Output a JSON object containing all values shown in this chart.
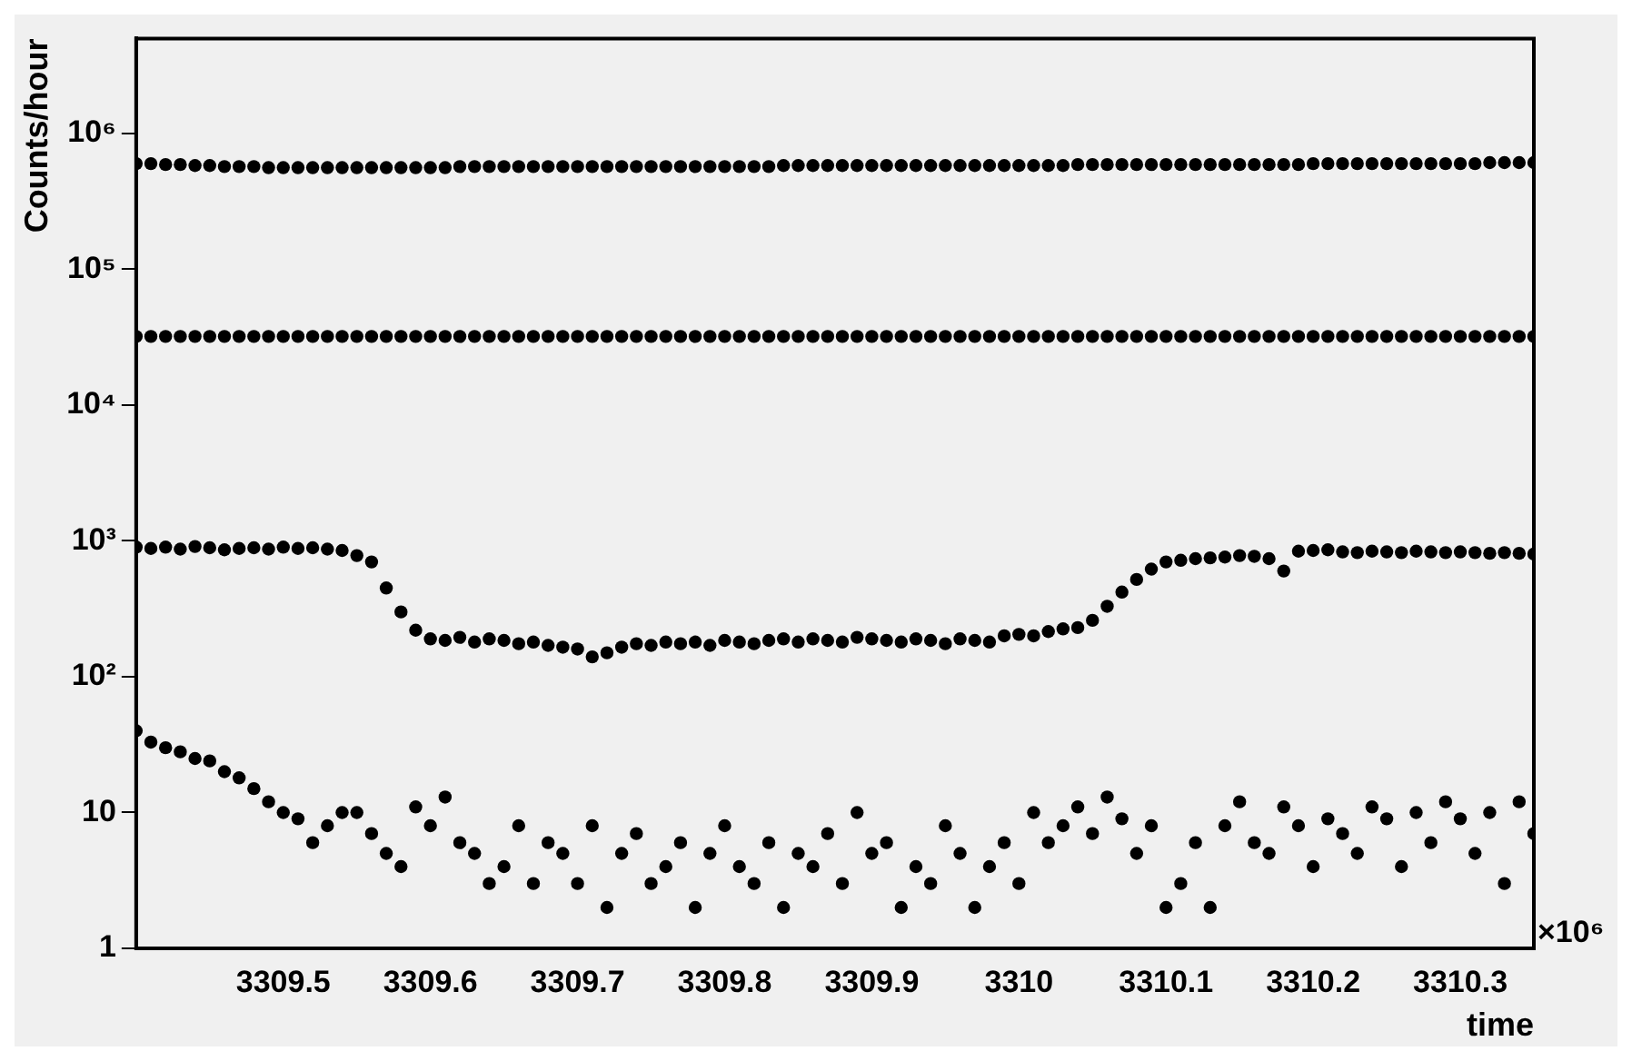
{
  "chart_data": {
    "type": "scatter",
    "xlabel": "time",
    "ylabel": "Counts/hour",
    "marker": "circle",
    "log": "y",
    "grid": false,
    "legend": false,
    "annotations": [
      "×10⁶"
    ],
    "xlim": [
      3309.4,
      3310.35
    ],
    "xticks": [
      3309.5,
      3309.6,
      3309.7,
      3309.8,
      3309.9,
      3310,
      3310.1,
      3310.2,
      3310.3
    ],
    "ylim": [
      1,
      5000000
    ],
    "yticks": [
      1,
      10,
      {
        "value": 100,
        "label": "10²"
      },
      {
        "value": 1000,
        "label": "10³"
      },
      {
        "value": 10000,
        "label": "10⁴"
      },
      {
        "value": 100000,
        "label": "10⁵"
      },
      {
        "value": 1000000,
        "label": "10⁶"
      }
    ],
    "x": [
      3309.4,
      3309.41,
      3309.42,
      3309.43,
      3309.44,
      3309.45,
      3309.46,
      3309.47,
      3309.48,
      3309.49,
      3309.5,
      3309.51,
      3309.52,
      3309.53,
      3309.54,
      3309.55,
      3309.56,
      3309.57,
      3309.58,
      3309.59,
      3309.6,
      3309.61,
      3309.62,
      3309.63,
      3309.64,
      3309.65,
      3309.66,
      3309.67,
      3309.68,
      3309.69,
      3309.7,
      3309.71,
      3309.72,
      3309.73,
      3309.74,
      3309.75,
      3309.76,
      3309.77,
      3309.78,
      3309.79,
      3309.8,
      3309.81,
      3309.82,
      3309.83,
      3309.84,
      3309.85,
      3309.86,
      3309.87,
      3309.88,
      3309.89,
      3309.9,
      3309.91,
      3309.92,
      3309.93,
      3309.94,
      3309.95,
      3309.96,
      3309.97,
      3309.98,
      3309.99,
      3310.0,
      3310.01,
      3310.02,
      3310.03,
      3310.04,
      3310.05,
      3310.06,
      3310.07,
      3310.08,
      3310.09,
      3310.1,
      3310.11,
      3310.12,
      3310.13,
      3310.14,
      3310.15,
      3310.16,
      3310.17,
      3310.18,
      3310.19,
      3310.2,
      3310.21,
      3310.22,
      3310.23,
      3310.24,
      3310.25,
      3310.26,
      3310.27,
      3310.28,
      3310.29,
      3310.3,
      3310.31,
      3310.32,
      3310.33,
      3310.34,
      3310.35
    ],
    "series": [
      {
        "color": "#000000",
        "values": [
          600000,
          600000,
          590000,
          590000,
          580000,
          580000,
          570000,
          570000,
          570000,
          560000,
          560000,
          560000,
          560000,
          560000,
          560000,
          560000,
          560000,
          560000,
          560000,
          560000,
          560000,
          560000,
          570000,
          570000,
          570000,
          570000,
          570000,
          570000,
          570000,
          570000,
          570000,
          570000,
          570000,
          570000,
          570000,
          570000,
          570000,
          570000,
          570000,
          570000,
          570000,
          570000,
          570000,
          570000,
          580000,
          580000,
          580000,
          580000,
          580000,
          580000,
          580000,
          580000,
          580000,
          580000,
          580000,
          580000,
          580000,
          580000,
          580000,
          580000,
          580000,
          580000,
          580000,
          580000,
          590000,
          590000,
          590000,
          590000,
          590000,
          590000,
          590000,
          590000,
          590000,
          590000,
          590000,
          590000,
          590000,
          590000,
          590000,
          590000,
          600000,
          600000,
          600000,
          600000,
          600000,
          600000,
          600000,
          600000,
          600000,
          600000,
          600000,
          600000,
          610000,
          610000,
          610000,
          610000
        ]
      },
      {
        "color": "#000000",
        "values": [
          32000,
          32000,
          32000,
          32000,
          32000,
          32000,
          32000,
          32000,
          32000,
          32000,
          32000,
          32000,
          32000,
          32000,
          32000,
          32000,
          32000,
          32000,
          32000,
          32000,
          32000,
          32000,
          32000,
          32000,
          32000,
          32000,
          32000,
          32000,
          32000,
          32000,
          32000,
          32000,
          32000,
          32000,
          32000,
          32000,
          32000,
          32000,
          32000,
          32000,
          32000,
          32000,
          32000,
          32000,
          32000,
          32000,
          32000,
          32000,
          32000,
          32000,
          32000,
          32000,
          32000,
          32000,
          32000,
          32000,
          32000,
          32000,
          32000,
          32000,
          32000,
          32000,
          32000,
          32000,
          32000,
          32000,
          32000,
          32000,
          32000,
          32000,
          32000,
          32000,
          32000,
          32000,
          32000,
          32000,
          32000,
          32000,
          32000,
          32000,
          32000,
          32000,
          32000,
          32000,
          32000,
          32000,
          32000,
          32000,
          32000,
          32000,
          32000,
          32000,
          32000,
          32000,
          32000,
          32000
        ]
      },
      {
        "color": "#000000",
        "values": [
          900,
          880,
          900,
          870,
          910,
          890,
          860,
          880,
          890,
          870,
          900,
          880,
          890,
          870,
          850,
          780,
          700,
          450,
          300,
          220,
          190,
          185,
          195,
          180,
          190,
          185,
          175,
          180,
          170,
          165,
          160,
          140,
          150,
          165,
          175,
          170,
          180,
          175,
          180,
          170,
          185,
          180,
          175,
          185,
          190,
          180,
          190,
          185,
          180,
          195,
          190,
          185,
          180,
          190,
          185,
          175,
          190,
          185,
          180,
          200,
          205,
          200,
          215,
          225,
          230,
          260,
          330,
          420,
          520,
          620,
          700,
          720,
          740,
          750,
          760,
          780,
          770,
          740,
          600,
          840,
          850,
          860,
          830,
          820,
          840,
          830,
          820,
          840,
          830,
          820,
          830,
          820,
          810,
          820,
          810,
          800
        ]
      },
      {
        "color": "#000000",
        "values": [
          40,
          33,
          30,
          28,
          25,
          24,
          20,
          18,
          15,
          12,
          10,
          9,
          6,
          8,
          10,
          10,
          7,
          5,
          4,
          11,
          8,
          13,
          6,
          5,
          3,
          4,
          8,
          3,
          6,
          5,
          3,
          8,
          2,
          5,
          7,
          3,
          4,
          6,
          2,
          5,
          8,
          4,
          3,
          6,
          2,
          5,
          4,
          7,
          3,
          10,
          5,
          6,
          2,
          4,
          3,
          8,
          5,
          2,
          4,
          6,
          3,
          10,
          6,
          8,
          11,
          7,
          13,
          9,
          5,
          8,
          2,
          3,
          6,
          2,
          8,
          12,
          6,
          5,
          11,
          8,
          4,
          9,
          7,
          5,
          11,
          9,
          4,
          10,
          6,
          12,
          9,
          5,
          10,
          3,
          12,
          7
        ]
      }
    ]
  }
}
